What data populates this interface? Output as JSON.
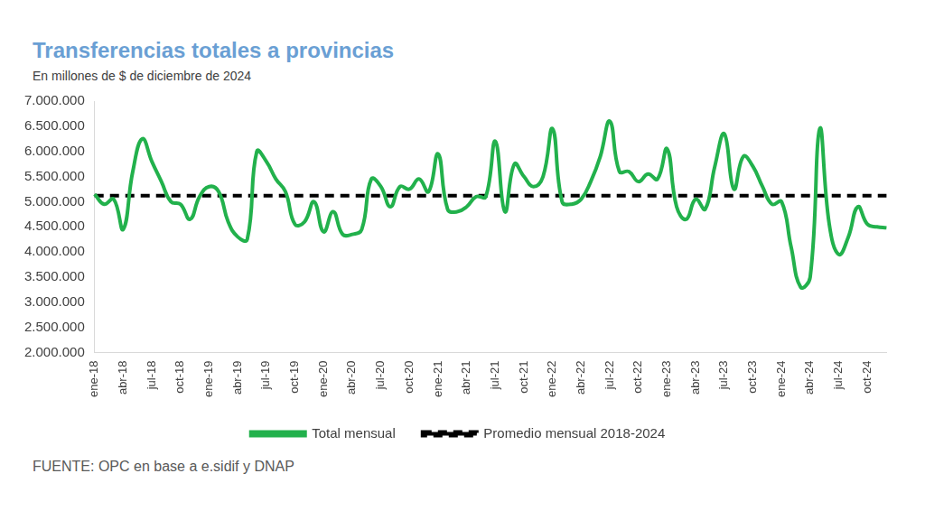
{
  "chart_data": {
    "type": "line",
    "title": "Transferencias totales a provincias",
    "subtitle": "En millones de $ de diciembre de 2024",
    "source": "FUENTE: OPC en base a e.sidif y DNAP",
    "categories": [
      "ene-18",
      null,
      null,
      "abr-18",
      null,
      null,
      "jul-18",
      null,
      null,
      "oct-18",
      null,
      null,
      "ene-19",
      null,
      null,
      "abr-19",
      null,
      null,
      "jul-19",
      null,
      null,
      "oct-19",
      null,
      null,
      "ene-20",
      null,
      null,
      "abr-20",
      null,
      null,
      "jul-20",
      null,
      null,
      "oct-20",
      null,
      null,
      "ene-21",
      null,
      null,
      "abr-21",
      null,
      null,
      "jul-21",
      null,
      null,
      "oct-21",
      null,
      null,
      "ene-22",
      null,
      null,
      "abr-22",
      null,
      null,
      "jul-22",
      null,
      null,
      "oct-22",
      null,
      null,
      "ene-23",
      null,
      null,
      "abr-23",
      null,
      null,
      "jul-23",
      null,
      null,
      "oct-23",
      null,
      null,
      "ene-24",
      null,
      null,
      "abr-24",
      null,
      null,
      "jul-24",
      null,
      null,
      "oct-24",
      null,
      null
    ],
    "series": [
      {
        "name": "Total mensual",
        "color": "#22b14c",
        "line_style": "solid",
        "values": [
          5150000,
          4950000,
          5050000,
          4450000,
          5600000,
          6250000,
          5800000,
          5400000,
          5000000,
          4950000,
          4650000,
          5100000,
          5300000,
          5200000,
          4600000,
          4300000,
          4250000,
          6000000,
          5800000,
          5450000,
          5200000,
          4550000,
          4600000,
          5000000,
          4400000,
          4800000,
          4350000,
          4350000,
          4450000,
          5450000,
          5300000,
          4900000,
          5300000,
          5250000,
          5450000,
          5200000,
          5950000,
          4850000,
          4800000,
          4900000,
          5100000,
          5100000,
          6200000,
          4800000,
          5750000,
          5500000,
          5300000,
          5500000,
          6450000,
          5000000,
          4950000,
          5050000,
          5400000,
          5900000,
          6600000,
          5600000,
          5600000,
          5400000,
          5550000,
          5450000,
          6050000,
          4900000,
          4650000,
          5050000,
          4850000,
          5700000,
          6350000,
          5250000,
          5900000,
          5700000,
          5300000,
          4950000,
          5000000,
          4100000,
          3300000,
          3500000,
          6450000,
          4550000,
          3950000,
          4300000,
          4900000,
          4550000,
          4500000,
          4480000
        ]
      },
      {
        "name": "Promedio mensual 2018-2024",
        "color": "#000000",
        "line_style": "dashed",
        "values": [
          5120000,
          5120000,
          5120000,
          5120000,
          5120000,
          5120000,
          5120000,
          5120000,
          5120000,
          5120000,
          5120000,
          5120000,
          5120000,
          5120000,
          5120000,
          5120000,
          5120000,
          5120000,
          5120000,
          5120000,
          5120000,
          5120000,
          5120000,
          5120000,
          5120000,
          5120000,
          5120000,
          5120000,
          5120000,
          5120000,
          5120000,
          5120000,
          5120000,
          5120000,
          5120000,
          5120000,
          5120000,
          5120000,
          5120000,
          5120000,
          5120000,
          5120000,
          5120000,
          5120000,
          5120000,
          5120000,
          5120000,
          5120000,
          5120000,
          5120000,
          5120000,
          5120000,
          5120000,
          5120000,
          5120000,
          5120000,
          5120000,
          5120000,
          5120000,
          5120000,
          5120000,
          5120000,
          5120000,
          5120000,
          5120000,
          5120000,
          5120000,
          5120000,
          5120000,
          5120000,
          5120000,
          5120000,
          5120000,
          5120000,
          5120000,
          5120000,
          5120000,
          5120000,
          5120000,
          5120000,
          5120000,
          5120000,
          5120000,
          5120000
        ]
      }
    ],
    "ylim": [
      2000000,
      7000000
    ],
    "yticks": [
      {
        "value": 2000000,
        "label": "2.000.000"
      },
      {
        "value": 2500000,
        "label": "2.500.000"
      },
      {
        "value": 3000000,
        "label": "3.000.000"
      },
      {
        "value": 3500000,
        "label": "3.500.000"
      },
      {
        "value": 4000000,
        "label": "4.000.000"
      },
      {
        "value": 4500000,
        "label": "4.500.000"
      },
      {
        "value": 5000000,
        "label": "5.000.000"
      },
      {
        "value": 5500000,
        "label": "5.500.000"
      },
      {
        "value": 6000000,
        "label": "6.000.000"
      },
      {
        "value": 6500000,
        "label": "6.500.000"
      },
      {
        "value": 7000000,
        "label": "7.000.000"
      }
    ],
    "grid": false,
    "legend": "bottom"
  }
}
